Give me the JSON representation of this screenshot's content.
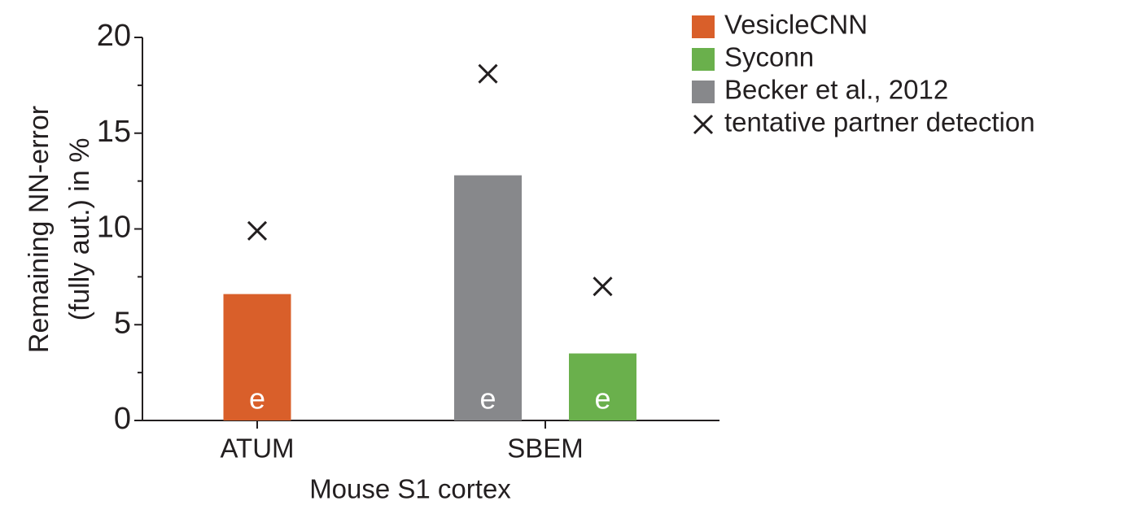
{
  "chart_data": {
    "type": "bar",
    "ylabel": [
      "Remaining NN-error",
      "(fully aut.) in %"
    ],
    "xlabel": "Mouse S1 cortex",
    "categories": [
      "ATUM",
      "SBEM"
    ],
    "series": [
      {
        "name": "VesicleCNN",
        "color": "#d95f2a",
        "values": [
          6.6,
          null
        ],
        "tentative_values": [
          9.9,
          null
        ]
      },
      {
        "name": "Syconn",
        "color": "#6ab04c",
        "values": [
          null,
          3.5
        ],
        "tentative_values": [
          null,
          7.0
        ]
      },
      {
        "name": "Becker et al., 2012",
        "color": "#87888b",
        "values": [
          null,
          12.8
        ],
        "tentative_values": [
          null,
          18.1
        ]
      }
    ],
    "bar_label": "e",
    "marker_legend": "tentative partner detection",
    "ylim": [
      0,
      20
    ],
    "yticks": [
      0,
      5,
      10,
      15,
      20
    ],
    "yminorticks": [
      2.5,
      7.5,
      12.5,
      17.5
    ],
    "grid": false,
    "legend": "upper right"
  }
}
